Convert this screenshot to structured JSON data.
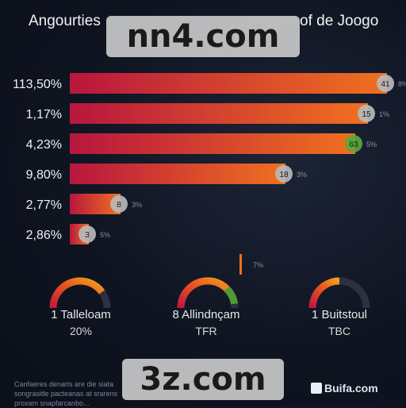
{
  "title_left": "Angourties",
  "title_right": "of de Joogo",
  "watermark_top": "nn4.com",
  "watermark_bottom": "3z.com",
  "footer_text": "Canfaeres denaris are die siata\nsongrasitle pacteanas at srarens\nproxam snapfarcanbo...",
  "brand": "Buifa.com",
  "colors": {
    "bar_start": "#b8163e",
    "bar_end": "#f0701f",
    "marker": "#b9b9b9",
    "marker_green": "#5aa83a",
    "background": "#0f1421"
  },
  "chart_data": {
    "type": "bar",
    "orientation": "horizontal",
    "categories": [
      "113,50%",
      "1,17%",
      "4,23%",
      "9,80%",
      "2,77%",
      "2,86%",
      "7%"
    ],
    "values": [
      100,
      94,
      90,
      68,
      16,
      6,
      1
    ],
    "marker_labels": [
      "41",
      "15",
      "63",
      "18",
      "8",
      "3",
      ""
    ],
    "side_labels": [
      "8%",
      "1%",
      "5%",
      "3%",
      "3%",
      "5%",
      "7%"
    ],
    "category_labels_shown": [
      true,
      true,
      true,
      true,
      true,
      true,
      false
    ],
    "highlight_index": 2,
    "xlim": [
      0,
      100
    ]
  },
  "gauges": [
    {
      "label": "1 Talleloam",
      "value_text": "20%",
      "level": 0.8
    },
    {
      "label": "8 Allindnçam",
      "value_text": "TFR",
      "level": 0.95
    },
    {
      "label": "1 Buitstoul",
      "value_text": "TBC",
      "level": 0.5
    }
  ]
}
